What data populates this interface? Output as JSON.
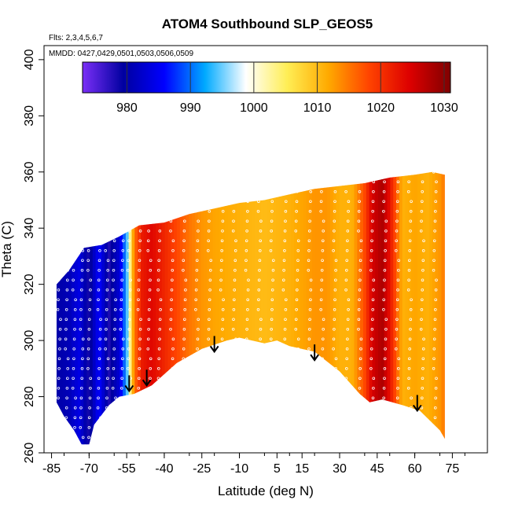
{
  "chart_data": {
    "type": "heatmap",
    "title": "ATOM4 Southbound SLP_GEOS5",
    "annotations": {
      "flights": "Flts: 2,3,4,5,6,7",
      "dates": "MMDD: 0427,0429,0501,0503,0506,0509"
    },
    "xlabel": "Latitude (deg N)",
    "ylabel": "Theta (C)",
    "xlim": [
      -88,
      89
    ],
    "ylim": [
      260,
      405
    ],
    "x_ticks": [
      -85,
      -70,
      -55,
      -40,
      -25,
      -10,
      5,
      15,
      30,
      45,
      60,
      75
    ],
    "x_tick_labels": [
      "-85",
      "-70",
      "-55",
      "-40",
      "-25",
      "-10",
      "5",
      "15",
      "30",
      "45",
      "60",
      "75"
    ],
    "y_ticks": [
      260,
      280,
      300,
      320,
      340,
      360,
      380,
      400
    ],
    "y_tick_labels": [
      "260",
      "280",
      "300",
      "320",
      "340",
      "360",
      "380",
      "400"
    ],
    "colorbar": {
      "min": 973,
      "max": 1031,
      "ticks": [
        980,
        990,
        1000,
        1010,
        1020,
        1030
      ],
      "tick_labels": [
        "980",
        "990",
        "1000",
        "1010",
        "1020",
        "1030"
      ],
      "colors": [
        "#7b2ff7",
        "#0000a0",
        "#0000ff",
        "#00aaff",
        "#ffffff",
        "#ffee55",
        "#ffaa00",
        "#ff4400",
        "#dd0000",
        "#800000"
      ]
    },
    "coverage_top": [
      [
        -83,
        320
      ],
      [
        -78,
        325
      ],
      [
        -72,
        333
      ],
      [
        -65,
        334
      ],
      [
        -58,
        337
      ],
      [
        -50,
        341
      ],
      [
        -40,
        342
      ],
      [
        -30,
        345
      ],
      [
        -20,
        347
      ],
      [
        -10,
        349
      ],
      [
        0,
        350
      ],
      [
        10,
        352
      ],
      [
        20,
        354
      ],
      [
        30,
        355
      ],
      [
        40,
        356
      ],
      [
        50,
        358
      ],
      [
        60,
        359
      ],
      [
        67,
        360
      ],
      [
        72,
        359
      ]
    ],
    "coverage_bottom": [
      [
        -83,
        278
      ],
      [
        -80,
        273
      ],
      [
        -76,
        268
      ],
      [
        -73,
        263
      ],
      [
        -70,
        263
      ],
      [
        -68,
        270
      ],
      [
        -62,
        277
      ],
      [
        -58,
        280
      ],
      [
        -52,
        281
      ],
      [
        -45,
        284
      ],
      [
        -35,
        292
      ],
      [
        -25,
        297
      ],
      [
        -15,
        300
      ],
      [
        -10,
        301
      ],
      [
        -5,
        300
      ],
      [
        0,
        299
      ],
      [
        5,
        300
      ],
      [
        10,
        298
      ],
      [
        20,
        296
      ],
      [
        30,
        289
      ],
      [
        38,
        281
      ],
      [
        42,
        278
      ],
      [
        47,
        279
      ],
      [
        55,
        277
      ],
      [
        62,
        275
      ],
      [
        70,
        268
      ],
      [
        72,
        265
      ]
    ],
    "slp_by_latitude": [
      [
        -83,
        980
      ],
      [
        -78,
        981
      ],
      [
        -74,
        984
      ],
      [
        -70,
        978
      ],
      [
        -66,
        986
      ],
      [
        -62,
        978
      ],
      [
        -58,
        983
      ],
      [
        -55,
        993
      ],
      [
        -52,
        1015
      ],
      [
        -49,
        1022
      ],
      [
        -45,
        1024
      ],
      [
        -40,
        1021
      ],
      [
        -35,
        1018
      ],
      [
        -30,
        1015
      ],
      [
        -25,
        1013
      ],
      [
        -20,
        1012
      ],
      [
        -10,
        1011
      ],
      [
        0,
        1010
      ],
      [
        10,
        1011
      ],
      [
        20,
        1013
      ],
      [
        25,
        1013
      ],
      [
        30,
        1011
      ],
      [
        35,
        1011
      ],
      [
        40,
        1018
      ],
      [
        43,
        1025
      ],
      [
        47,
        1028
      ],
      [
        50,
        1023
      ],
      [
        55,
        1011
      ],
      [
        60,
        1012
      ],
      [
        65,
        1011
      ],
      [
        70,
        1013
      ],
      [
        72,
        1015
      ]
    ],
    "arrows": [
      {
        "lat": -54,
        "theta": 282
      },
      {
        "lat": -47,
        "theta": 284
      },
      {
        "lat": -20,
        "theta": 296
      },
      {
        "lat": 20,
        "theta": 293
      },
      {
        "lat": 61,
        "theta": 275
      }
    ],
    "obs_tracks_lat": [
      -85,
      -82,
      -79,
      -76,
      -73,
      -70,
      -66,
      -63,
      -60,
      -57,
      -54,
      -50,
      -46,
      -42,
      -37,
      -32,
      -27,
      -22,
      -17,
      -12,
      -7,
      -2,
      3,
      8,
      13,
      18,
      23,
      28,
      33,
      38,
      43,
      48,
      53,
      58,
      63,
      68
    ]
  }
}
